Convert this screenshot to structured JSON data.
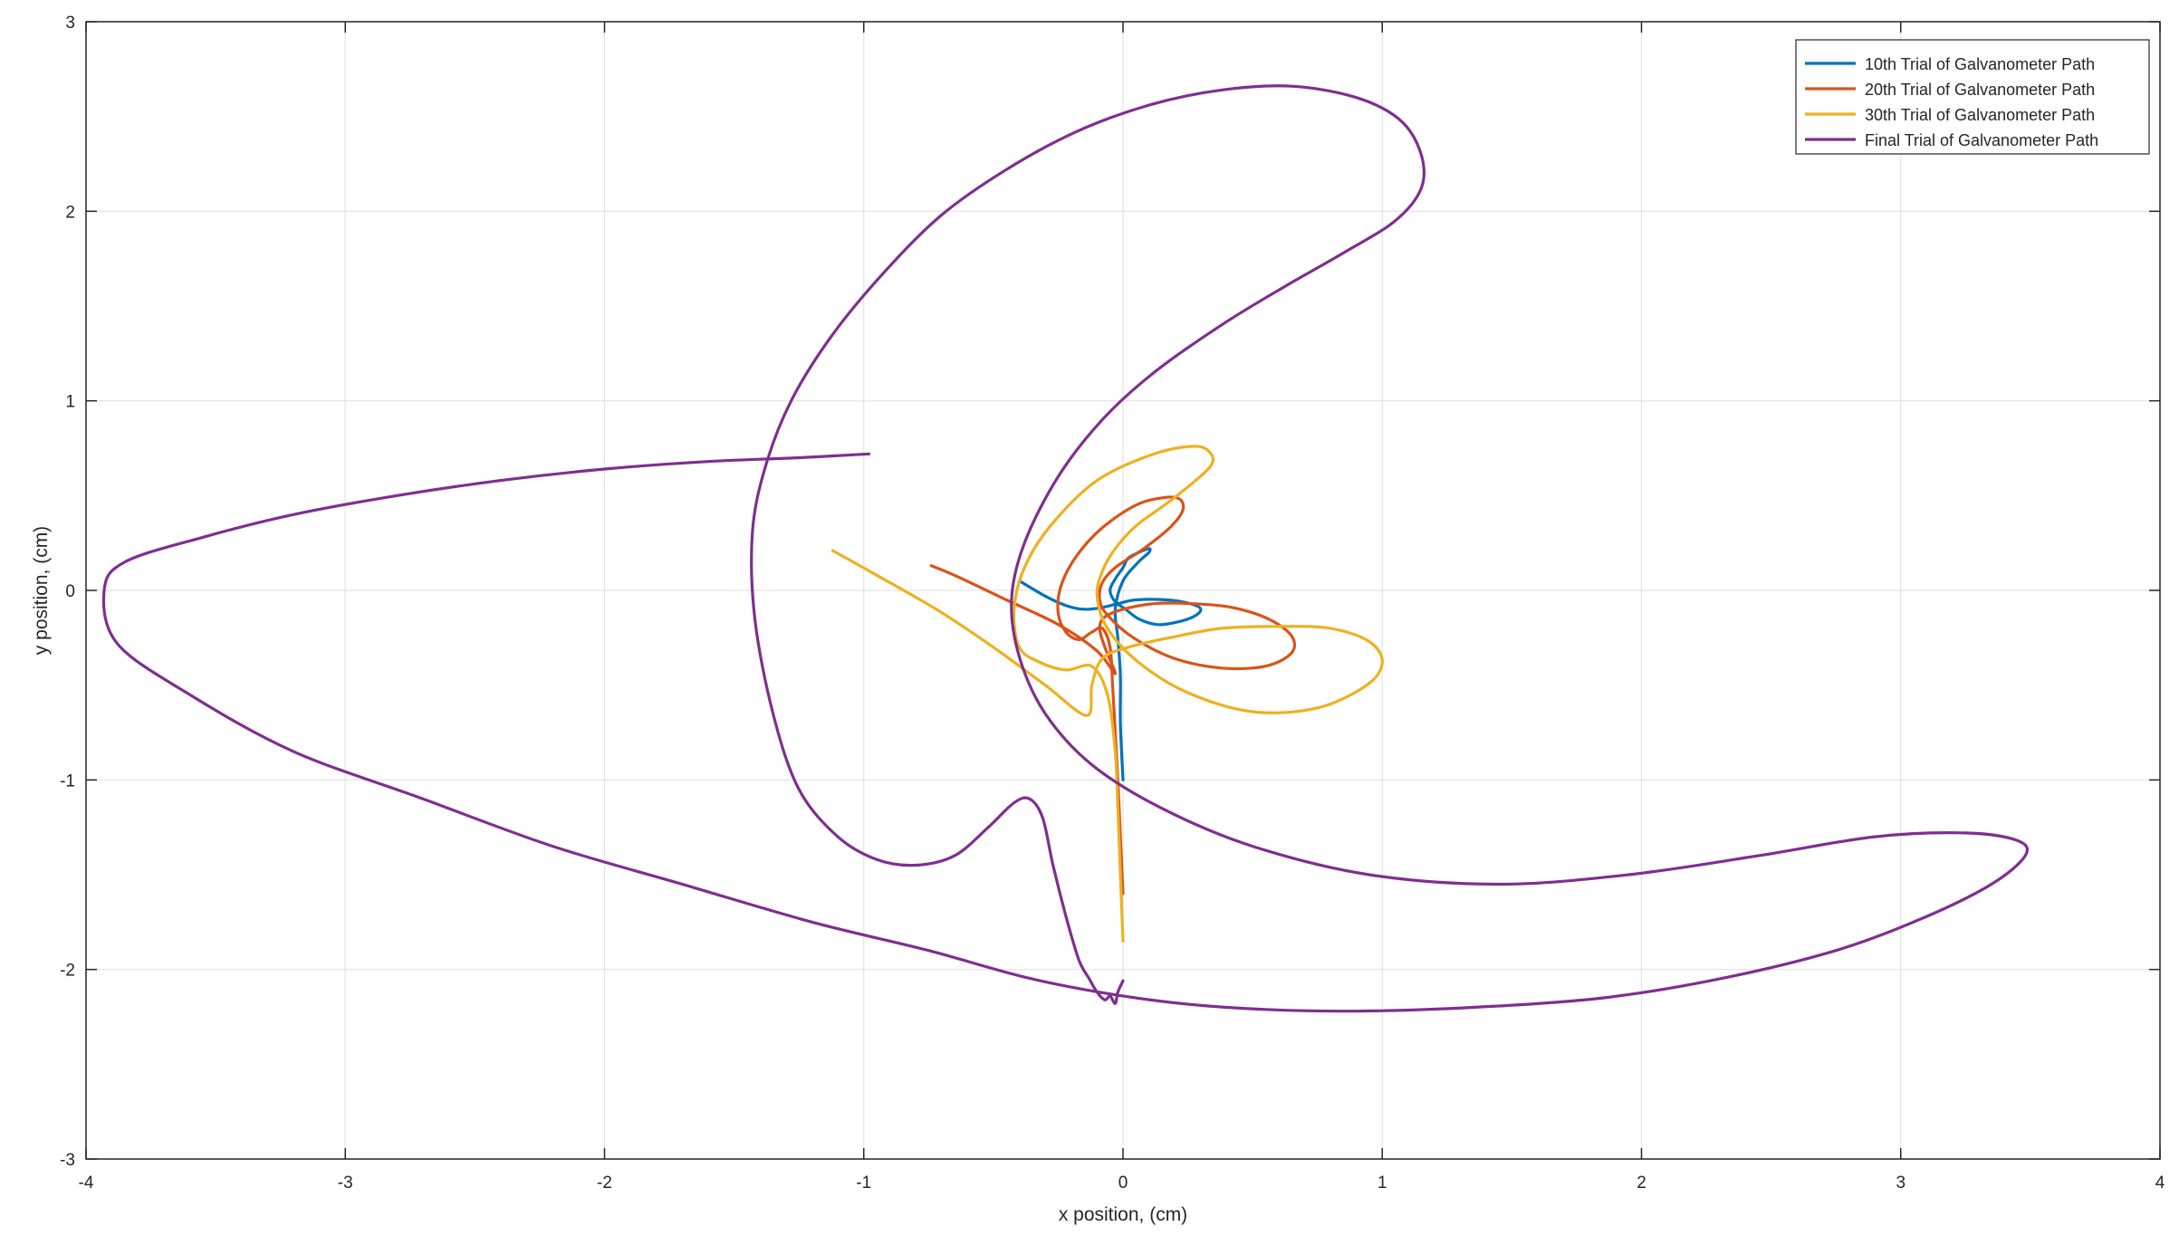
{
  "chart_data": {
    "type": "line",
    "title": "",
    "xlabel": "x position, (cm)",
    "ylabel": "y position, (cm)",
    "xlim": [
      -4,
      4
    ],
    "ylim": [
      -3,
      3
    ],
    "xticks": [
      -4,
      -3,
      -2,
      -1,
      0,
      1,
      2,
      3,
      4
    ],
    "yticks": [
      -3,
      -2,
      -1,
      0,
      1,
      2,
      3
    ],
    "xtick_labels": [
      "-4",
      "-3",
      "-2",
      "-1",
      "0",
      "1",
      "2",
      "3",
      "4"
    ],
    "ytick_labels": [
      "-3",
      "-2",
      "-1",
      "0",
      "1",
      "2",
      "3"
    ],
    "grid": true,
    "legend_position": "top-right",
    "series": [
      {
        "name": "10th Trial of Galvanometer Path",
        "color": "#0072BD",
        "x": [
          0.0,
          -0.01,
          -0.01,
          -0.02,
          -0.03,
          0.0,
          0.06,
          0.1,
          0.1,
          0.06,
          0.02,
          0.0,
          -0.03,
          -0.05,
          -0.03,
          0.01,
          0.06,
          0.13,
          0.2,
          0.27,
          0.3,
          0.26,
          0.17,
          0.05,
          -0.02,
          -0.08,
          -0.15,
          -0.22,
          -0.3,
          -0.4
        ],
        "y": [
          -1.0,
          -0.7,
          -0.45,
          -0.25,
          -0.1,
          0.05,
          0.15,
          0.2,
          0.22,
          0.2,
          0.17,
          0.12,
          0.06,
          0.0,
          -0.06,
          -0.1,
          -0.15,
          -0.18,
          -0.17,
          -0.14,
          -0.1,
          -0.07,
          -0.05,
          -0.05,
          -0.07,
          -0.09,
          -0.1,
          -0.08,
          -0.03,
          0.05
        ]
      },
      {
        "name": "20th Trial of Galvanometer Path",
        "color": "#D95319",
        "x": [
          0.0,
          -0.01,
          -0.02,
          -0.03,
          -0.04,
          -0.05,
          -0.08,
          -0.12,
          -0.17,
          -0.22,
          -0.25,
          -0.24,
          -0.18,
          -0.08,
          0.05,
          0.16,
          0.22,
          0.23,
          0.18,
          0.08,
          -0.03,
          -0.08,
          -0.09,
          -0.06,
          0.04,
          0.2,
          0.38,
          0.55,
          0.65,
          0.65,
          0.56,
          0.42,
          0.27,
          0.12,
          0.0,
          -0.07,
          -0.09,
          -0.07,
          -0.03,
          -0.1,
          -0.25,
          -0.45,
          -0.65,
          -0.74
        ],
        "y": [
          -1.6,
          -1.3,
          -1.0,
          -0.75,
          -0.5,
          -0.3,
          -0.2,
          -0.22,
          -0.26,
          -0.22,
          -0.12,
          0.02,
          0.18,
          0.33,
          0.45,
          0.49,
          0.48,
          0.42,
          0.33,
          0.22,
          0.12,
          0.04,
          -0.05,
          -0.13,
          -0.25,
          -0.36,
          -0.41,
          -0.4,
          -0.33,
          -0.24,
          -0.15,
          -0.09,
          -0.07,
          -0.07,
          -0.1,
          -0.14,
          -0.2,
          -0.3,
          -0.44,
          -0.32,
          -0.18,
          -0.05,
          0.08,
          0.13
        ]
      },
      {
        "name": "30th Trial of Galvanometer Path",
        "color": "#EDB120",
        "x": [
          0.0,
          -0.01,
          -0.02,
          -0.03,
          -0.06,
          -0.12,
          -0.22,
          -0.32,
          -0.4,
          -0.42,
          -0.38,
          -0.28,
          -0.1,
          0.12,
          0.28,
          0.34,
          0.34,
          0.28,
          0.18,
          0.05,
          -0.03,
          -0.08,
          -0.1,
          -0.06,
          0.06,
          0.25,
          0.5,
          0.75,
          0.94,
          1.0,
          0.95,
          0.8,
          0.6,
          0.38,
          0.18,
          0.02,
          -0.08,
          -0.12,
          -0.14,
          -0.3,
          -0.5,
          -0.72,
          -0.95,
          -1.12
        ],
        "y": [
          -1.85,
          -1.5,
          -1.15,
          -0.85,
          -0.55,
          -0.4,
          -0.42,
          -0.38,
          -0.3,
          -0.1,
          0.12,
          0.34,
          0.58,
          0.72,
          0.76,
          0.72,
          0.66,
          0.58,
          0.47,
          0.34,
          0.22,
          0.1,
          -0.03,
          -0.2,
          -0.38,
          -0.54,
          -0.64,
          -0.62,
          -0.5,
          -0.38,
          -0.27,
          -0.2,
          -0.19,
          -0.2,
          -0.25,
          -0.3,
          -0.36,
          -0.5,
          -0.66,
          -0.5,
          -0.3,
          -0.1,
          0.08,
          0.21
        ]
      },
      {
        "name": "Final Trial of Galvanometer Path",
        "color": "#7E2F8E",
        "x": [
          0.0,
          -0.02,
          -0.03,
          -0.05,
          -0.07,
          -0.1,
          -0.13,
          -0.17,
          -0.22,
          -0.27,
          -0.31,
          -0.36,
          -0.42,
          -0.52,
          -0.65,
          -0.8,
          -0.95,
          -1.1,
          -1.25,
          -1.35,
          -1.42,
          -1.43,
          -1.38,
          -1.28,
          -1.12,
          -0.92,
          -0.7,
          -0.45,
          -0.18,
          0.1,
          0.38,
          0.65,
          0.9,
          1.07,
          1.15,
          1.15,
          1.05,
          0.85,
          0.62,
          0.38,
          0.12,
          -0.08,
          -0.25,
          -0.38,
          -0.43,
          -0.4,
          -0.3,
          -0.12,
          0.15,
          0.5,
          0.95,
          1.45,
          1.95,
          2.45,
          2.9,
          3.25,
          3.45,
          3.48,
          3.35,
          3.1,
          2.75,
          2.3,
          1.85,
          1.35,
          0.85,
          0.4,
          0.05,
          -0.35,
          -0.75,
          -1.2,
          -1.7,
          -2.2,
          -2.7,
          -3.2,
          -3.6,
          -3.88,
          -3.93,
          -3.85,
          -3.55,
          -3.2,
          -2.8,
          -2.4,
          -2.0,
          -1.6,
          -1.25,
          -0.98
        ],
        "y": [
          -2.06,
          -2.12,
          -2.18,
          -2.14,
          -2.16,
          -2.12,
          -2.05,
          -1.95,
          -1.72,
          -1.45,
          -1.2,
          -1.1,
          -1.12,
          -1.25,
          -1.4,
          -1.45,
          -1.42,
          -1.3,
          -1.05,
          -0.65,
          -0.15,
          0.3,
          0.65,
          1.0,
          1.35,
          1.68,
          1.98,
          2.22,
          2.42,
          2.56,
          2.64,
          2.66,
          2.6,
          2.48,
          2.3,
          2.12,
          1.95,
          1.78,
          1.6,
          1.4,
          1.15,
          0.9,
          0.6,
          0.25,
          -0.05,
          -0.35,
          -0.65,
          -0.92,
          -1.15,
          -1.35,
          -1.5,
          -1.55,
          -1.5,
          -1.4,
          -1.3,
          -1.28,
          -1.32,
          -1.4,
          -1.55,
          -1.72,
          -1.9,
          -2.05,
          -2.15,
          -2.2,
          -2.22,
          -2.2,
          -2.15,
          -2.05,
          -1.9,
          -1.75,
          -1.55,
          -1.35,
          -1.1,
          -0.85,
          -0.55,
          -0.28,
          0.0,
          0.15,
          0.28,
          0.4,
          0.5,
          0.58,
          0.64,
          0.68,
          0.7,
          0.72
        ]
      }
    ]
  }
}
